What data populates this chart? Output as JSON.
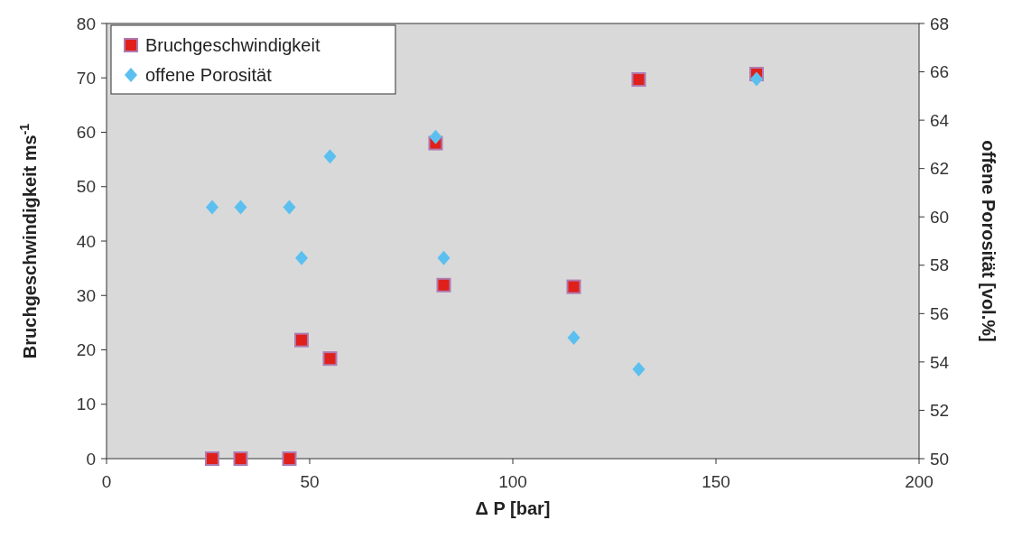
{
  "chart_data": {
    "type": "scatter",
    "xlabel": "Δ P [bar]",
    "ylabel": "Bruchgeschwindigkeit ms$^{-1}$",
    "y2label": "offene Porosität [vol.%]",
    "xlim": [
      0,
      200
    ],
    "xticks": [
      0,
      50,
      100,
      150,
      200
    ],
    "ylim": [
      0,
      80
    ],
    "yticks": [
      0,
      10,
      20,
      30,
      40,
      50,
      60,
      70,
      80
    ],
    "y2lim": [
      50,
      68
    ],
    "y2ticks": [
      50,
      52,
      54,
      56,
      58,
      60,
      62,
      64,
      66,
      68
    ],
    "legend": "top left",
    "grid": false,
    "series": [
      {
        "name": "Bruchgeschwindigkeit",
        "color": "#e0201a",
        "marker": "square",
        "x": [
          26,
          33,
          45,
          48,
          55,
          81,
          83,
          115,
          131,
          160
        ],
        "values": [
          0,
          0,
          0,
          21.8,
          18.4,
          58,
          31.9,
          31.6,
          69.7,
          70.7
        ]
      },
      {
        "name": "offene Porosität",
        "color": "#5bc0f0",
        "marker": "diamond",
        "axis": "y2",
        "x": [
          26,
          33,
          45,
          48,
          55,
          81,
          83,
          115,
          131,
          160
        ],
        "values": [
          60.4,
          60.4,
          60.4,
          58.3,
          62.5,
          63.3,
          58.3,
          55.0,
          53.7,
          65.7
        ]
      }
    ]
  }
}
